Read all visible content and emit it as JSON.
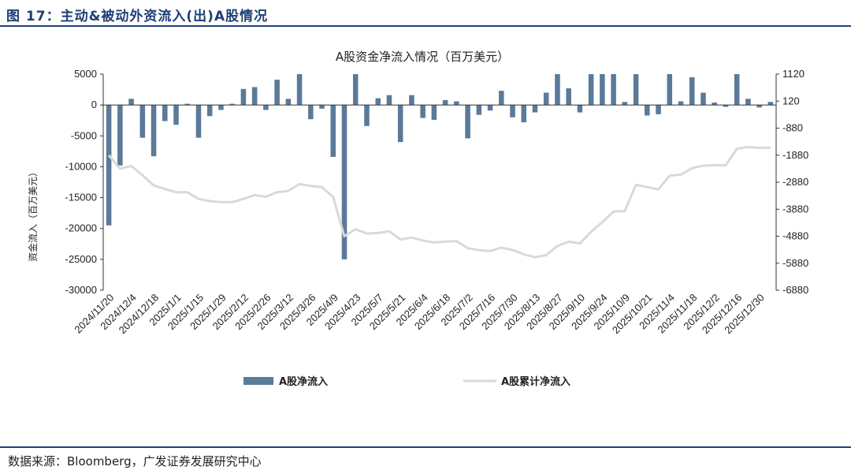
{
  "figure": {
    "title": "图 17：主动&被动外资流入(出)A股情况",
    "source": "数据来源：Bloomberg，广发证券发展研究中心"
  },
  "chart_data": {
    "type": "bar",
    "title": "A股资金净流入情况（百万美元）",
    "ylabel": "资金流入（百万美元）",
    "y2label": "",
    "ylim": [
      -30000,
      5000
    ],
    "y2lim": [
      -6880,
      1120
    ],
    "yticks": [
      5000,
      0,
      -5000,
      -10000,
      -15000,
      -20000,
      -25000,
      -30000
    ],
    "y2ticks": [
      1120,
      120,
      -880,
      -1880,
      -2880,
      -3880,
      -4880,
      -5880,
      -6880
    ],
    "xtick_labels": [
      "2024/11/20",
      "2024/12/4",
      "2024/12/18",
      "2025/1/1",
      "2025/1/15",
      "2025/1/29",
      "2025/2/12",
      "2025/2/26",
      "2025/3/12",
      "2025/3/26",
      "2025/4/9",
      "2025/4/23",
      "2025/5/7",
      "2025/5/21",
      "2025/6/4",
      "2025/6/18",
      "2025/7/2",
      "2025/7/16",
      "2025/7/30",
      "2025/8/13",
      "2025/8/27",
      "2025/9/10",
      "2025/9/24",
      "2025/10/9",
      "2025/10/21",
      "2025/11/4",
      "2025/11/18",
      "2025/12/2",
      "2025/12/16",
      "2025/12/30"
    ],
    "series": [
      {
        "name": "A股净流入",
        "type": "bar",
        "axis": "left",
        "color": "#5b7a99",
        "values": [
          -19500,
          -9800,
          1000,
          -5300,
          -8300,
          -2600,
          -3200,
          200,
          -5300,
          -1800,
          -800,
          200,
          2600,
          2900,
          -800,
          4100,
          1000,
          5000,
          -2300,
          -600,
          -8400,
          -25000,
          5000,
          -3400,
          1100,
          1600,
          -6000,
          1600,
          -2100,
          -2400,
          800,
          600,
          -5400,
          -1600,
          -900,
          2300,
          -2000,
          -2800,
          -1200,
          2000,
          5000,
          2700,
          -1200,
          5000,
          5000,
          5000,
          500,
          5000,
          -1700,
          -1500,
          5000,
          600,
          4500,
          2000,
          400,
          -300,
          5000,
          1000,
          -400,
          500
        ],
        "clipped_at_axis_limits": true
      },
      {
        "name": "A股累计净流入",
        "type": "line",
        "axis": "right",
        "color": "#d9d9d9",
        "values": [
          -1880,
          -2380,
          -2280,
          -2620,
          -3000,
          -3130,
          -3250,
          -3250,
          -3500,
          -3580,
          -3620,
          -3620,
          -3500,
          -3360,
          -3420,
          -3250,
          -3200,
          -2950,
          -3020,
          -3060,
          -3430,
          -4880,
          -4620,
          -4780,
          -4760,
          -4700,
          -5000,
          -4930,
          -5040,
          -5110,
          -5080,
          -5060,
          -5320,
          -5400,
          -5430,
          -5300,
          -5390,
          -5550,
          -5660,
          -5580,
          -5240,
          -5080,
          -5150,
          -4720,
          -4360,
          -3970,
          -3950,
          -2980,
          -3060,
          -3150,
          -2640,
          -2600,
          -2360,
          -2270,
          -2250,
          -2260,
          -1640,
          -1580,
          -1610,
          -1600
        ]
      }
    ],
    "legend": {
      "position": "bottom",
      "items": [
        {
          "label": "A股净流入",
          "marker": "bar",
          "color": "#5b7a99"
        },
        {
          "label": "A股累计净流入",
          "marker": "line",
          "color": "#d9d9d9"
        }
      ]
    },
    "grid": false
  }
}
